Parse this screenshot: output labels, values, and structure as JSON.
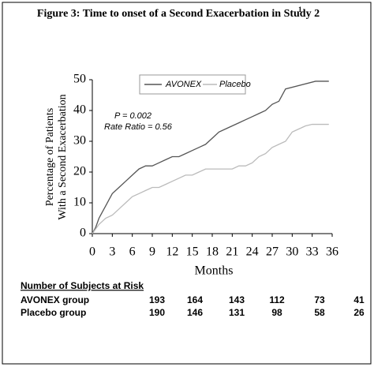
{
  "chart_data": {
    "type": "line",
    "title": "Figure 3: Time to onset of a Second Exacerbation in Study 2",
    "title_note": "1",
    "xlabel": "Months",
    "ylabel": [
      "Percentage of Patients",
      "With a Second Exacerbation"
    ],
    "annotations": [
      "P = 0.002",
      "Rate Ratio = 0.56"
    ],
    "legend": "top",
    "xlim": [
      0,
      36
    ],
    "xticks": [
      0,
      3,
      6,
      9,
      12,
      15,
      18,
      21,
      24,
      27,
      30,
      33,
      36
    ],
    "ylim": [
      0,
      50
    ],
    "yticks": [
      0,
      10,
      20,
      30,
      40,
      50
    ],
    "series": [
      {
        "name": "AVONEX",
        "color": "#555555",
        "x": [
          0,
          0.5,
          1,
          1.5,
          2,
          2.5,
          3,
          4,
          5,
          6,
          7,
          8,
          9,
          10,
          11,
          12,
          13,
          14,
          15,
          16,
          17,
          18,
          19,
          20,
          21,
          22,
          23,
          24,
          25,
          26,
          27,
          28,
          29,
          33.5,
          35.5
        ],
        "values": [
          0,
          2,
          5,
          7,
          9,
          11,
          13,
          15,
          17,
          19,
          21,
          22,
          22,
          23,
          24,
          25,
          25,
          26,
          27,
          28,
          29,
          31,
          33,
          34,
          35,
          36,
          37,
          38,
          39,
          40,
          42,
          43,
          47,
          49.5,
          49.5
        ]
      },
      {
        "name": "Placebo",
        "color": "#bbbbbb",
        "x": [
          0,
          1,
          2,
          3,
          4,
          5,
          6,
          7,
          8,
          9,
          10,
          11,
          12,
          13,
          14,
          15,
          16,
          17,
          18,
          19,
          20,
          21,
          22,
          23,
          24,
          25,
          26,
          27,
          28,
          29,
          30,
          31,
          32,
          33,
          35.5
        ],
        "values": [
          0,
          3,
          5,
          6,
          8,
          10,
          12,
          13,
          14,
          15,
          15,
          16,
          17,
          18,
          19,
          19,
          20,
          21,
          21,
          21,
          21,
          21,
          22,
          22,
          23,
          25,
          26,
          28,
          29,
          30,
          33,
          34,
          35,
          35.5,
          35.5
        ]
      }
    ]
  },
  "risk_table": {
    "title": "Number of Subjects at Risk",
    "rows": [
      {
        "label": "AVONEX group",
        "values": [
          193,
          164,
          143,
          112,
          73,
          41
        ]
      },
      {
        "label": "Placebo group",
        "values": [
          190,
          146,
          131,
          98,
          58,
          26
        ]
      }
    ]
  }
}
